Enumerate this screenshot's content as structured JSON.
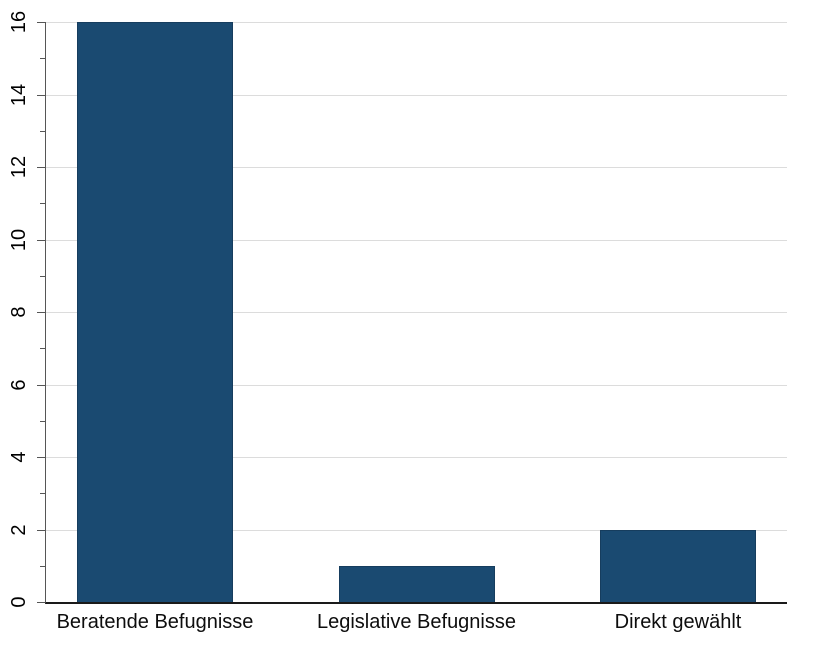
{
  "chart_data": {
    "type": "bar",
    "title": "",
    "categories": [
      "Beratende Befugnisse",
      "Legislative Befugnisse",
      "Direkt gewählt"
    ],
    "values": [
      16,
      1,
      2
    ],
    "xlabel": "",
    "ylabel": "",
    "ylim": [
      0,
      16
    ],
    "ytick_major_step": 2,
    "ytick_minor_step": 1,
    "y_tick_labels": [
      "0",
      "2",
      "4",
      "6",
      "8",
      "10",
      "12",
      "14",
      "16"
    ],
    "grid": "horizontal-major",
    "legend": "none",
    "colors": {
      "bar_fill": "#1a4a71",
      "bar_border": "#163d5e",
      "gridline": "#dcdcdc",
      "axis_spine": "#565656",
      "baseline": "#1a1a1a",
      "text": "#000000",
      "background": "#ffffff"
    }
  }
}
